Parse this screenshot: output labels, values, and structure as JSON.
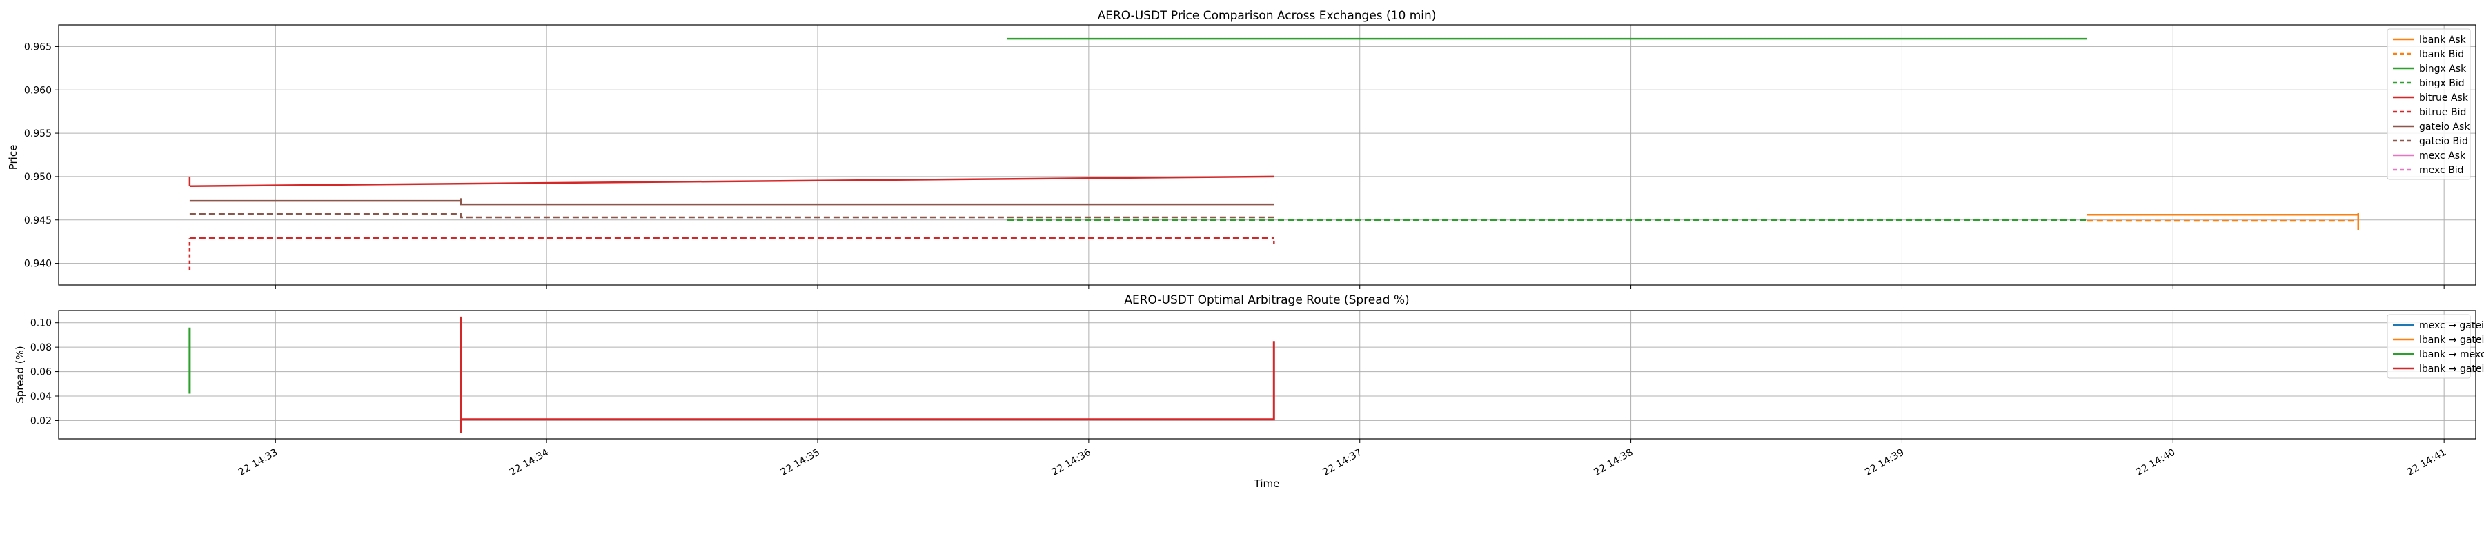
{
  "chart_data": [
    {
      "type": "line",
      "title": "AERO-USDT Price Comparison Across Exchanges (10 min)",
      "xlabel": "",
      "ylabel": "Price",
      "ylim": [
        0.9375,
        0.9675
      ],
      "yticks": [
        0.94,
        0.945,
        0.95,
        0.955,
        0.96,
        0.965
      ],
      "ytick_labels": [
        "0.940",
        "0.945",
        "0.950",
        "0.955",
        "0.960",
        "0.965"
      ],
      "grid": true,
      "legend_position": "top-right",
      "series": [
        {
          "name": "lbank Ask",
          "color": "#ff7f0e",
          "dash": "solid",
          "points": [
            [
              "14:39:41",
              0.9456
            ],
            [
              "14:40:41",
              0.9456
            ]
          ]
        },
        {
          "name": "lbank Bid",
          "color": "#ff7f0e",
          "dash": "dashed",
          "points": [
            [
              "14:39:41",
              0.9449
            ],
            [
              "14:40:41",
              0.9449
            ]
          ]
        },
        {
          "name": "bingx Ask",
          "color": "#2ca02c",
          "dash": "solid",
          "points": [
            [
              "14:35:42",
              0.9659
            ],
            [
              "14:39:41",
              0.9659
            ]
          ]
        },
        {
          "name": "bingx Bid",
          "color": "#2ca02c",
          "dash": "dashed",
          "points": [
            [
              "14:35:42",
              0.945
            ],
            [
              "14:39:41",
              0.945
            ]
          ]
        },
        {
          "name": "bitrue Ask",
          "color": "#d62728",
          "dash": "solid",
          "points": [
            [
              "14:32:41",
              0.9489
            ],
            [
              "14:36:41",
              0.95
            ]
          ]
        },
        {
          "name": "bitrue Bid",
          "color": "#d62728",
          "dash": "dashed",
          "points": [
            [
              "14:32:41",
              0.9429
            ],
            [
              "14:36:41",
              0.9429
            ]
          ]
        },
        {
          "name": "gateio Ask",
          "color": "#8c564b",
          "dash": "solid",
          "points": [
            [
              "14:32:41",
              0.9472
            ],
            [
              "14:33:41",
              0.9472
            ],
            [
              "14:33:41",
              0.9468
            ],
            [
              "14:36:41",
              0.9468
            ]
          ]
        },
        {
          "name": "gateio Bid",
          "color": "#8c564b",
          "dash": "dashed",
          "points": [
            [
              "14:32:41",
              0.9457
            ],
            [
              "14:33:41",
              0.9457
            ],
            [
              "14:33:41",
              0.9453
            ],
            [
              "14:36:41",
              0.9453
            ]
          ]
        },
        {
          "name": "mexc Ask",
          "color": "#e377c2",
          "dash": "solid",
          "points": []
        },
        {
          "name": "mexc Bid",
          "color": "#e377c2",
          "dash": "dashed",
          "points": []
        }
      ],
      "vertical_segments": [
        {
          "color": "#d62728",
          "dash": "solid",
          "x": "14:32:41",
          "y": [
            0.9489,
            0.95
          ]
        },
        {
          "color": "#d62728",
          "dash": "dashed",
          "x": "14:32:41",
          "y": [
            0.9392,
            0.9429
          ]
        },
        {
          "color": "#8c564b",
          "dash": "solid",
          "x": "14:33:41",
          "y": [
            0.9468,
            0.9475
          ]
        },
        {
          "color": "#d62728",
          "dash": "dashed",
          "x": "14:36:41",
          "y": [
            0.9422,
            0.9429
          ]
        },
        {
          "color": "#ff7f0e",
          "dash": "solid",
          "x": "14:40:41",
          "y": [
            0.9438,
            0.9458
          ]
        }
      ]
    },
    {
      "type": "line",
      "title": "AERO-USDT Optimal Arbitrage Route (Spread %)",
      "xlabel": "Time",
      "ylabel": "Spread (%)",
      "ylim": [
        0.005,
        0.11
      ],
      "yticks": [
        0.02,
        0.04,
        0.06,
        0.08,
        0.1
      ],
      "ytick_labels": [
        "0.02",
        "0.04",
        "0.06",
        "0.08",
        "0.10"
      ],
      "xlim": [
        "14:32:12",
        "14:41:07"
      ],
      "xticks": [
        "14:33:00",
        "14:34:00",
        "14:35:00",
        "14:36:00",
        "14:37:00",
        "14:38:00",
        "14:39:00",
        "14:40:00",
        "14:41:00"
      ],
      "xtick_labels": [
        "22 14:33",
        "22 14:34",
        "22 14:35",
        "22 14:36",
        "22 14:37",
        "22 14:38",
        "22 14:39",
        "22 14:40",
        "22 14:41"
      ],
      "grid": true,
      "legend_position": "top-right",
      "series": [
        {
          "name": "mexc → gateio",
          "color": "#1f77b4",
          "dash": "solid",
          "points": []
        },
        {
          "name": "lbank → gateio",
          "color": "#ff7f0e",
          "dash": "solid",
          "points": []
        },
        {
          "name": "lbank → mexc",
          "color": "#2ca02c",
          "dash": "solid",
          "points": [
            [
              "14:32:41",
              0.042
            ],
            [
              "14:32:41",
              0.096
            ]
          ]
        },
        {
          "name": "lbank → gateio",
          "color": "#d62728",
          "dash": "solid",
          "points": [
            [
              "14:33:41",
              0.105
            ],
            [
              "14:33:41",
              0.01
            ],
            [
              "14:33:41",
              0.021
            ],
            [
              "14:36:41",
              0.021
            ],
            [
              "14:36:41",
              0.085
            ]
          ]
        }
      ]
    }
  ]
}
